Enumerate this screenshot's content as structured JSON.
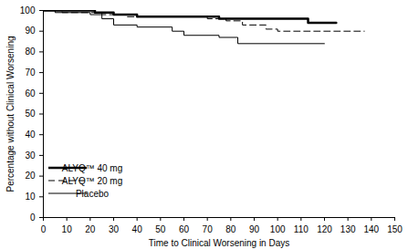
{
  "chart_data": {
    "type": "line",
    "x_label": "Time to Clinical Worsening in Days",
    "y_label": "Percentage without Clinical Worsening",
    "xlim": [
      0,
      150
    ],
    "xticks": [
      0,
      10,
      20,
      30,
      40,
      50,
      60,
      70,
      80,
      90,
      100,
      110,
      120,
      130,
      140,
      150
    ],
    "ylim": [
      0,
      100
    ],
    "yticks": [
      0,
      10,
      20,
      30,
      40,
      50,
      60,
      70,
      80,
      90,
      100
    ],
    "grid": false,
    "legend": "lower left",
    "series": [
      {
        "name": "ALYQ™ 40 mg",
        "color": "#000000",
        "line_style": "thick",
        "x": [
          0,
          22,
          30,
          40,
          75,
          113,
          125
        ],
        "values": [
          100,
          99,
          98,
          97,
          96,
          94,
          94
        ]
      },
      {
        "name": "ALYQ™ 20 mg",
        "color": "#000000",
        "line_style": "dashed",
        "x": [
          0,
          8,
          25,
          35,
          70,
          78,
          85,
          95,
          100,
          137
        ],
        "values": [
          100,
          99,
          98,
          97,
          96,
          95,
          93,
          91,
          90,
          90
        ]
      },
      {
        "name": "Placebo",
        "color": "#000000",
        "line_style": "solid",
        "x": [
          0,
          5,
          20,
          25,
          30,
          40,
          55,
          60,
          75,
          83,
          120
        ],
        "values": [
          100,
          99,
          98,
          96,
          93,
          92,
          90,
          88,
          87,
          84,
          84
        ]
      }
    ]
  }
}
